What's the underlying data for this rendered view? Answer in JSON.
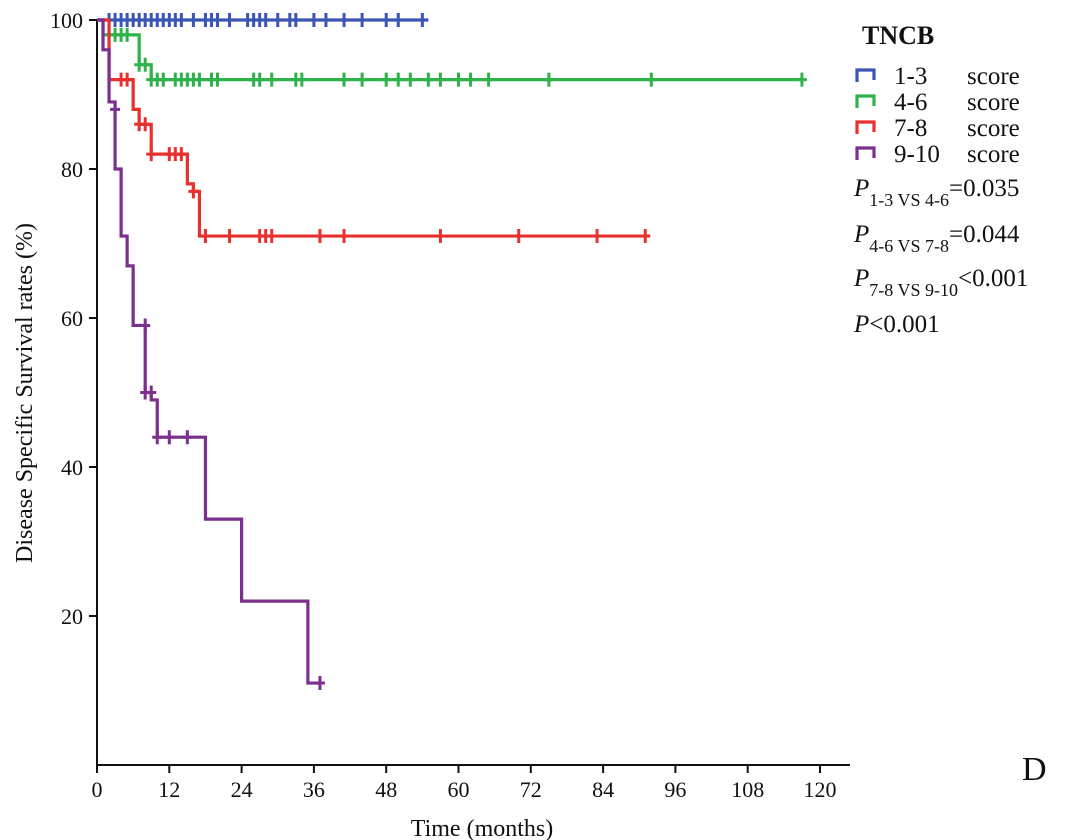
{
  "chart_data": {
    "type": "line",
    "subtype": "kaplan-meier step",
    "xlabel": "Time (months)",
    "ylabel": "Disease Specific Survival rates (%)",
    "xlim": [
      0,
      126
    ],
    "ylim": [
      0,
      100
    ],
    "xticks": [
      0,
      12,
      24,
      36,
      48,
      60,
      72,
      84,
      96,
      108,
      120
    ],
    "yticks": [
      20,
      40,
      60,
      80,
      100
    ],
    "grid": false,
    "legend_title": "TNCB",
    "legend_position": "top-right",
    "series": [
      {
        "name": "1-3 score",
        "color": "#3a55b4",
        "steps": [
          [
            0,
            100
          ],
          [
            55,
            100
          ]
        ],
        "censored": [
          [
            2,
            100
          ],
          [
            3,
            100
          ],
          [
            4,
            100
          ],
          [
            5,
            100
          ],
          [
            6,
            100
          ],
          [
            7,
            100
          ],
          [
            8,
            100
          ],
          [
            9,
            100
          ],
          [
            10,
            100
          ],
          [
            11,
            100
          ],
          [
            12,
            100
          ],
          [
            13,
            100
          ],
          [
            14,
            100
          ],
          [
            16,
            100
          ],
          [
            18,
            100
          ],
          [
            19,
            100
          ],
          [
            20,
            100
          ],
          [
            22,
            100
          ],
          [
            25,
            100
          ],
          [
            26,
            100
          ],
          [
            27,
            100
          ],
          [
            28,
            100
          ],
          [
            30,
            100
          ],
          [
            32,
            100
          ],
          [
            33,
            100
          ],
          [
            36,
            100
          ],
          [
            38,
            100
          ],
          [
            41,
            100
          ],
          [
            44,
            100
          ],
          [
            48,
            100
          ],
          [
            50,
            100
          ],
          [
            54,
            100
          ]
        ]
      },
      {
        "name": "4-6 score",
        "color": "#2db34a",
        "steps": [
          [
            0,
            100
          ],
          [
            1,
            98
          ],
          [
            6,
            98
          ],
          [
            7,
            94
          ],
          [
            9,
            92
          ],
          [
            117,
            92
          ]
        ],
        "censored": [
          [
            2,
            98
          ],
          [
            3,
            98
          ],
          [
            4,
            98
          ],
          [
            5,
            98
          ],
          [
            7,
            94
          ],
          [
            8,
            94
          ],
          [
            9,
            92
          ],
          [
            10,
            92
          ],
          [
            11,
            92
          ],
          [
            13,
            92
          ],
          [
            14,
            92
          ],
          [
            15,
            92
          ],
          [
            16,
            92
          ],
          [
            17,
            92
          ],
          [
            19,
            92
          ],
          [
            20,
            92
          ],
          [
            26,
            92
          ],
          [
            27,
            92
          ],
          [
            29,
            92
          ],
          [
            33,
            92
          ],
          [
            34,
            92
          ],
          [
            41,
            92
          ],
          [
            44,
            92
          ],
          [
            48,
            92
          ],
          [
            50,
            92
          ],
          [
            52,
            92
          ],
          [
            55,
            92
          ],
          [
            57,
            92
          ],
          [
            60,
            92
          ],
          [
            62,
            92
          ],
          [
            65,
            92
          ],
          [
            75,
            92
          ],
          [
            92,
            92
          ],
          [
            117,
            92
          ]
        ]
      },
      {
        "name": "7-8 score",
        "color": "#e8302e",
        "steps": [
          [
            0,
            100
          ],
          [
            2,
            92
          ],
          [
            6,
            88
          ],
          [
            7,
            86
          ],
          [
            9,
            82
          ],
          [
            15,
            78
          ],
          [
            16,
            77
          ],
          [
            17,
            71
          ],
          [
            91,
            71
          ]
        ],
        "censored": [
          [
            4,
            92
          ],
          [
            5,
            92
          ],
          [
            7,
            86
          ],
          [
            8,
            86
          ],
          [
            9,
            82
          ],
          [
            12,
            82
          ],
          [
            13,
            82
          ],
          [
            14,
            82
          ],
          [
            16,
            77
          ],
          [
            18,
            71
          ],
          [
            22,
            71
          ],
          [
            27,
            71
          ],
          [
            28,
            71
          ],
          [
            29,
            71
          ],
          [
            37,
            71
          ],
          [
            41,
            71
          ],
          [
            57,
            71
          ],
          [
            70,
            71
          ],
          [
            83,
            71
          ],
          [
            91,
            71
          ]
        ]
      },
      {
        "name": "9-10 score",
        "color": "#7b2f8e",
        "steps": [
          [
            0,
            100
          ],
          [
            1,
            96
          ],
          [
            2,
            89
          ],
          [
            3,
            80
          ],
          [
            4,
            71
          ],
          [
            5,
            67
          ],
          [
            6,
            59
          ],
          [
            8,
            50
          ],
          [
            9,
            49
          ],
          [
            10,
            44
          ],
          [
            18,
            33
          ],
          [
            24,
            22
          ],
          [
            35,
            11
          ],
          [
            37,
            11
          ]
        ],
        "censored": [
          [
            3,
            88
          ],
          [
            8,
            59
          ],
          [
            8,
            50
          ],
          [
            9,
            50
          ],
          [
            10,
            44
          ],
          [
            12,
            44
          ],
          [
            15,
            44
          ],
          [
            37,
            11
          ]
        ]
      }
    ],
    "annotations": [
      {
        "p": "P",
        "sub": "1-3 VS 4-6",
        "rest": "=0.035"
      },
      {
        "p": "P",
        "sub": "4-6 VS 7-8",
        "rest": "=0.044"
      },
      {
        "p": "P",
        "sub": "7-8 VS 9-10",
        "rest": "<0.001"
      },
      {
        "p": "P",
        "sub": "",
        "rest": "<0.001"
      }
    ],
    "panel_label": "D"
  }
}
